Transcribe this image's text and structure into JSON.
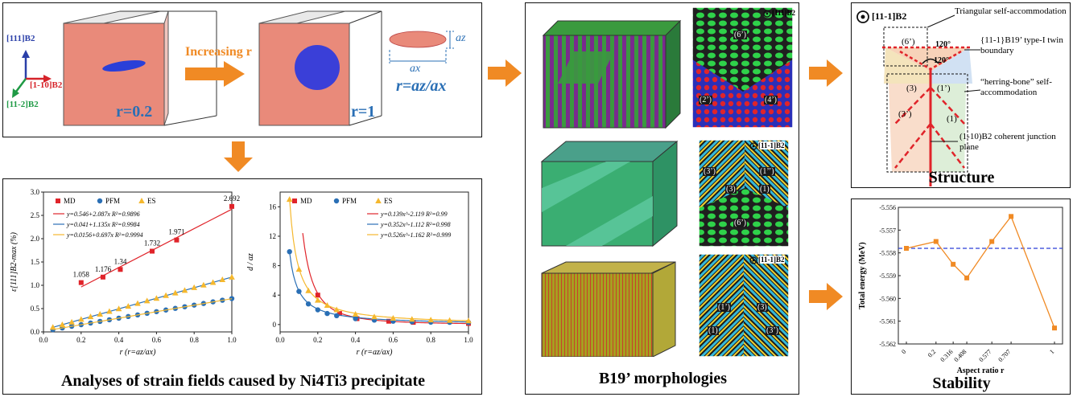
{
  "top_panel": {
    "axis_labels": [
      "[111]B2",
      "[1-10]B2",
      "[11-2]B2"
    ],
    "increasing_label": "Increasing r",
    "r_small": "r=0.2",
    "r_one": "r=1",
    "ratio_def": "r=az/ax",
    "az_label": "az",
    "ax_label": "ax"
  },
  "strain_panel": {
    "caption": "Analyses of strain fields caused by Ni4Ti3 precipitate",
    "left_chart": {
      "legend": [
        "MD",
        "PFM",
        "ES"
      ],
      "fits": [
        "y=0.546+2.087x   R²=0.9896",
        "y=0.041+1.135x   R²=0.9984",
        "y=0.0156+0.697x   R²=0.9994"
      ],
      "ylabel": "ε[111]B2-max (%)",
      "xlabel": "r (r=az/ax)",
      "point_labels": [
        "1.058",
        "1.176",
        "1.34",
        "1.732",
        "1.971",
        "2.692"
      ],
      "x_ticks": [
        "0.0",
        "0.2",
        "0.4",
        "0.6",
        "0.8",
        "1.0"
      ],
      "y_ticks": [
        "0.0",
        "0.5",
        "1.0",
        "1.5",
        "2.0",
        "2.5",
        "3.0"
      ]
    },
    "right_chart": {
      "legend": [
        "MD",
        "PFM",
        "ES"
      ],
      "fits": [
        "y=0.139x^-2.119   R²=0.99",
        "y=0.352x^-1.112   R²=0.998",
        "y=0.526x^-1.162   R²=0.999"
      ],
      "ylabel": "d / az",
      "xlabel": "r (r=az/ax)",
      "x_ticks": [
        "0.0",
        "0.2",
        "0.4",
        "0.6",
        "0.8",
        "1.0"
      ],
      "y_ticks": [
        "0",
        "4",
        "8",
        "12",
        "16"
      ]
    }
  },
  "morph_panel": {
    "caption": "B19’ morphologies",
    "insets": [
      {
        "zone": "[111]B2",
        "variants": [
          "(6’)",
          "(2’)",
          "(4’)"
        ]
      },
      {
        "zone": "[11-1]B2",
        "variants": [
          "(3’)",
          "(3)",
          "(1’’)",
          "(1)",
          "(6’)"
        ]
      },
      {
        "zone": "[11-1]B2",
        "variants": [
          "(1’)",
          "(1)",
          "(3)",
          "(3’)"
        ]
      }
    ]
  },
  "structure_panel": {
    "caption": "Structure",
    "zone": "[11-1]B2",
    "annotations": [
      "Triangular self-accommodation",
      "{11-1}B19’ type-I twin boundary",
      "“herring-bone” self-accommodation",
      "(1-10)B2 coherent junction plane"
    ],
    "angles": [
      "120°",
      "120°"
    ],
    "variants": [
      "(6’)",
      "(3)",
      "(1’)",
      "(3’)",
      "(1)"
    ]
  },
  "stability_panel": {
    "caption": "Stability",
    "ylabel": "Total energy (MeV)",
    "xlabel": "Aspect ratio r",
    "x_ticks": [
      "0",
      "0.2",
      "0.316",
      "0.408",
      "0.577",
      "0.707",
      "1"
    ],
    "y_ticks": [
      "-5.556",
      "-5.557",
      "-5.558",
      "-5.559",
      "-5.560",
      "-5.561",
      "-5.562"
    ]
  },
  "chart_data": [
    {
      "type": "scatter",
      "title": "",
      "xlabel": "r (r=az/ax)",
      "ylabel": "ε[111]B2-max (%)",
      "xlim": [
        0,
        1
      ],
      "ylim": [
        0,
        3
      ],
      "series": [
        {
          "name": "MD",
          "color": "#e0242a",
          "x": [
            0.2,
            0.316,
            0.408,
            0.577,
            0.707,
            1.0
          ],
          "y": [
            1.058,
            1.176,
            1.34,
            1.732,
            1.971,
            2.692
          ]
        },
        {
          "name": "PFM",
          "color": "#2a6fb5",
          "x": [
            0.05,
            0.1,
            0.15,
            0.2,
            0.25,
            0.3,
            0.35,
            0.4,
            0.45,
            0.5,
            0.55,
            0.6,
            0.65,
            0.7,
            0.75,
            0.8,
            0.85,
            0.9,
            0.95,
            1.0
          ],
          "y": [
            0.05,
            0.085,
            0.12,
            0.155,
            0.19,
            0.225,
            0.26,
            0.295,
            0.33,
            0.365,
            0.4,
            0.435,
            0.47,
            0.505,
            0.54,
            0.575,
            0.61,
            0.645,
            0.68,
            0.715
          ]
        },
        {
          "name": "ES",
          "color": "#f5b82e",
          "x": [
            0.05,
            0.1,
            0.15,
            0.2,
            0.25,
            0.3,
            0.35,
            0.4,
            0.45,
            0.5,
            0.55,
            0.6,
            0.65,
            0.7,
            0.75,
            0.8,
            0.85,
            0.9,
            0.95,
            1.0
          ],
          "y": [
            0.1,
            0.155,
            0.21,
            0.27,
            0.325,
            0.38,
            0.44,
            0.495,
            0.55,
            0.61,
            0.665,
            0.72,
            0.78,
            0.835,
            0.89,
            0.95,
            1.005,
            1.06,
            1.12,
            1.175
          ]
        }
      ]
    },
    {
      "type": "scatter",
      "title": "",
      "xlabel": "r (r=az/ax)",
      "ylabel": "d / az",
      "xlim": [
        0,
        1
      ],
      "ylim": [
        -1,
        18
      ],
      "series": [
        {
          "name": "MD",
          "color": "#e0242a",
          "x": [
            0.2,
            0.316,
            0.408,
            0.577,
            0.707,
            1.0
          ],
          "y": [
            4.0,
            1.5,
            0.8,
            0.45,
            0.3,
            0.15
          ]
        },
        {
          "name": "PFM",
          "color": "#2a6fb5",
          "x": [
            0.05,
            0.1,
            0.15,
            0.2,
            0.25,
            0.3,
            0.4,
            0.5,
            0.6,
            0.7,
            0.8,
            0.9,
            1.0
          ],
          "y": [
            9.9,
            4.5,
            2.8,
            2.0,
            1.5,
            1.2,
            0.8,
            0.6,
            0.45,
            0.38,
            0.32,
            0.3,
            0.28
          ]
        },
        {
          "name": "ES",
          "color": "#f5b82e",
          "x": [
            0.05,
            0.1,
            0.15,
            0.2,
            0.25,
            0.3,
            0.4,
            0.5,
            0.6,
            0.7,
            0.8,
            0.9,
            1.0
          ],
          "y": [
            17.0,
            7.5,
            4.6,
            3.3,
            2.6,
            2.0,
            1.4,
            1.05,
            0.85,
            0.72,
            0.62,
            0.55,
            0.5
          ]
        }
      ]
    },
    {
      "type": "line",
      "title": "",
      "xlabel": "Aspect ratio r",
      "ylabel": "Total energy (MeV)",
      "ylim": [
        -5.562,
        -5.556
      ],
      "categories": [
        "0",
        "0.2",
        "0.316",
        "0.408",
        "0.577",
        "0.707",
        "1"
      ],
      "series": [
        {
          "name": "",
          "color": "#f08a24",
          "values": [
            -5.5578,
            -5.5575,
            -5.5585,
            -5.5591,
            -5.5575,
            -5.5564,
            -5.5613
          ]
        }
      ],
      "reference_line": -5.5578
    }
  ]
}
